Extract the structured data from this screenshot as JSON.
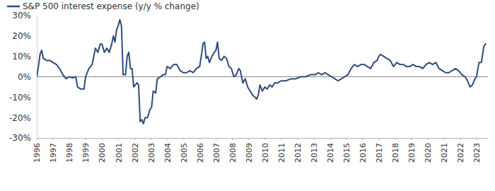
{
  "chart_data": {
    "type": "line",
    "legend": "top-left",
    "x": [
      1996.0,
      1996.1,
      1996.2,
      1996.3,
      1996.4,
      1996.6,
      1996.8,
      1997.0,
      1997.2,
      1997.4,
      1997.6,
      1997.8,
      1998.0,
      1998.2,
      1998.4,
      1998.5,
      1998.7,
      1998.9,
      1999.0,
      1999.2,
      1999.4,
      1999.5,
      1999.6,
      1999.75,
      1999.9,
      2000.0,
      2000.15,
      2000.3,
      2000.45,
      2000.6,
      2000.7,
      2000.8,
      2000.9,
      2001.0,
      2001.1,
      2001.2,
      2001.3,
      2001.45,
      2001.55,
      2001.65,
      2001.75,
      2001.85,
      2001.95,
      2002.05,
      2002.15,
      2002.25,
      2002.35,
      2002.45,
      2002.55,
      2002.65,
      2002.8,
      2002.95,
      2003.05,
      2003.15,
      2003.3,
      2003.4,
      2003.6,
      2003.75,
      2003.9,
      2004.0,
      2004.2,
      2004.4,
      2004.6,
      2004.8,
      2005.0,
      2005.2,
      2005.4,
      2005.6,
      2005.8,
      2006.0,
      2006.1,
      2006.2,
      2006.3,
      2006.4,
      2006.5,
      2006.6,
      2006.75,
      2006.9,
      2007.0,
      2007.1,
      2007.2,
      2007.35,
      2007.5,
      2007.65,
      2007.8,
      2007.95,
      2008.1,
      2008.25,
      2008.4,
      2008.5,
      2008.65,
      2008.8,
      2008.95,
      2009.1,
      2009.25,
      2009.4,
      2009.5,
      2009.6,
      2009.7,
      2009.85,
      2010.0,
      2010.15,
      2010.3,
      2010.45,
      2010.6,
      2010.8,
      2011.0,
      2011.3,
      2011.6,
      2011.9,
      2012.2,
      2012.5,
      2012.8,
      2013.1,
      2013.3,
      2013.5,
      2013.7,
      2013.9,
      2014.1,
      2014.3,
      2014.5,
      2014.7,
      2014.9,
      2015.1,
      2015.3,
      2015.5,
      2015.7,
      2015.9,
      2016.1,
      2016.3,
      2016.5,
      2016.7,
      2016.9,
      2017.0,
      2017.1,
      2017.3,
      2017.5,
      2017.7,
      2017.9,
      2018.1,
      2018.3,
      2018.5,
      2018.7,
      2018.9,
      2019.1,
      2019.3,
      2019.5,
      2019.7,
      2019.9,
      2020.1,
      2020.3,
      2020.5,
      2020.7,
      2020.9,
      2021.1,
      2021.3,
      2021.5,
      2021.7,
      2021.9,
      2022.1,
      2022.3,
      2022.45,
      2022.6,
      2022.75,
      2022.9,
      2023.0,
      2023.15,
      2023.3,
      2023.45,
      2023.55,
      2023.6
    ],
    "series": [
      {
        "name": "S&P 500 interest expense (y/y % change)",
        "color": "#2f4b7c",
        "values": [
          0,
          5,
          11,
          13,
          9,
          8,
          8,
          7,
          6,
          4,
          1,
          -1,
          0,
          -0.5,
          0,
          -5,
          -6,
          -6,
          0,
          4,
          6,
          10,
          14,
          12,
          16,
          16,
          12,
          14,
          12,
          16,
          20,
          17,
          23,
          25,
          28,
          25,
          1,
          1,
          10,
          12,
          4,
          4,
          -5,
          -4,
          -3,
          -4,
          -22,
          -21,
          -23,
          -20,
          -20,
          -16,
          -15,
          -7,
          -8,
          -1,
          0,
          1,
          1,
          5,
          4,
          6,
          6,
          3,
          2,
          2,
          3,
          2,
          4,
          5,
          10,
          16,
          17,
          9,
          10,
          7,
          10,
          12,
          13,
          17,
          9,
          8,
          10,
          9,
          5,
          4,
          0,
          1,
          4,
          3,
          -3,
          -1,
          -5,
          -7,
          -9,
          -10,
          -11,
          -9,
          -4,
          -7,
          -5,
          -6,
          -4,
          -5,
          -3,
          -3,
          -2,
          -2,
          -1,
          -1,
          0,
          0,
          1,
          1,
          2,
          1,
          2,
          1,
          0,
          -1,
          -2,
          -1,
          0,
          1,
          4,
          6,
          5,
          6,
          6,
          5,
          4,
          7,
          8,
          10,
          11,
          10,
          9,
          8,
          5,
          7,
          6,
          6,
          5,
          5,
          6,
          5,
          5,
          4,
          6,
          7,
          6,
          7,
          4,
          3,
          2,
          2,
          3,
          4,
          3,
          1,
          0,
          -2,
          -5,
          -4,
          -1,
          0,
          7,
          7,
          15,
          16,
          16
        ]
      }
    ],
    "xlim": [
      1996,
      2023.7
    ],
    "xticks": [
      1996,
      1997,
      1998,
      1999,
      2000,
      2001,
      2002,
      2003,
      2004,
      2005,
      2006,
      2007,
      2008,
      2009,
      2010,
      2011,
      2012,
      2013,
      2014,
      2015,
      2016,
      2017,
      2018,
      2019,
      2020,
      2021,
      2022,
      2023
    ],
    "ylim": [
      -30,
      30
    ],
    "yticks": [
      {
        "value": -30,
        "label": "-30%"
      },
      {
        "value": -20,
        "label": "-20%"
      },
      {
        "value": -10,
        "label": "-10%"
      },
      {
        "value": 0,
        "label": "0%"
      },
      {
        "value": 10,
        "label": "10%"
      },
      {
        "value": 20,
        "label": "20%"
      },
      {
        "value": 30,
        "label": "30%"
      }
    ]
  }
}
